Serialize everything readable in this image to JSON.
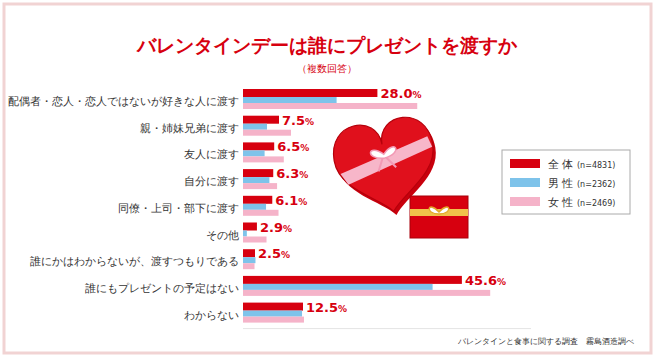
{
  "chart_data": {
    "type": "bar",
    "orientation": "horizontal",
    "title": "バレンタインデーは誰にプレゼントを渡すか",
    "subtitle": "（複数回答）",
    "source": "バレンタインと食事に関する調査　霧島酒造調べ",
    "categories": [
      "配偶者・恋人・恋人ではないが好きな人に渡す",
      "親・姉妹兄弟に渡す",
      "友人に渡す",
      "自分に渡す",
      "同僚・上司・部下に渡す",
      "その他",
      "誰にかはわからないが、渡すつもりである",
      "誰にもプレゼントの予定はない",
      "わからない"
    ],
    "series": [
      {
        "name": "全 体 (n=4831)",
        "color": "#d7000f",
        "values": [
          28.0,
          7.5,
          6.5,
          6.3,
          6.1,
          2.9,
          2.5,
          45.6,
          12.5
        ],
        "value_labels": [
          "28.0%",
          "7.5%",
          "6.5%",
          "6.3%",
          "6.1%",
          "2.9%",
          "2.5%",
          "45.6%",
          "12.5%"
        ],
        "data_labels": true
      },
      {
        "name": "男 性 (n=2362)",
        "color": "#7ec3ea",
        "values": [
          19.5,
          5.0,
          4.5,
          5.5,
          4.8,
          0.8,
          2.6,
          39.5,
          12.3
        ]
      },
      {
        "name": "女 性 (n=2469)",
        "color": "#f5b3c9",
        "values": [
          36.3,
          10.0,
          8.5,
          7.1,
          7.4,
          4.9,
          2.4,
          51.5,
          12.7
        ]
      }
    ],
    "xlim": [
      0,
      60
    ],
    "tick_labels": false,
    "grid": false,
    "legend": "right"
  }
}
